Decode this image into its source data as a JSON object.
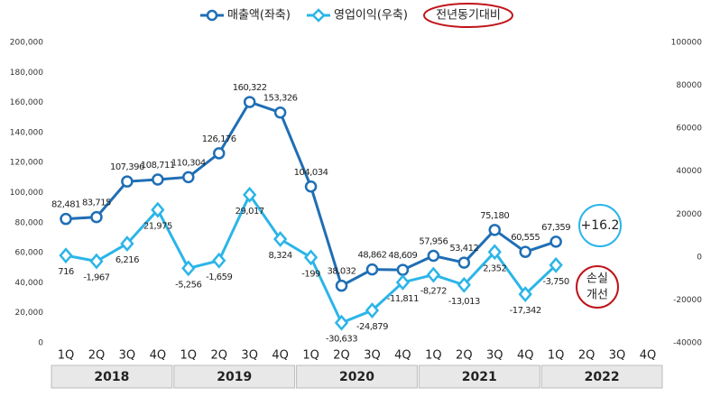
{
  "chart_data": {
    "type": "line",
    "categories": [
      "1Q",
      "2Q",
      "3Q",
      "4Q",
      "1Q",
      "2Q",
      "3Q",
      "4Q",
      "1Q",
      "2Q",
      "3Q",
      "4Q",
      "1Q",
      "2Q",
      "3Q",
      "4Q",
      "1Q",
      "2Q",
      "3Q",
      "4Q"
    ],
    "years": [
      "2018",
      "2019",
      "2020",
      "2021",
      "2022"
    ],
    "series": [
      {
        "name": "매출액(좌축)",
        "color": "#1f6eb5",
        "marker": "circle",
        "values": [
          82481,
          83715,
          107396,
          108711,
          110304,
          126176,
          160322,
          153326,
          104034,
          38032,
          48862,
          48609,
          57956,
          53412,
          75180,
          60555,
          67359,
          null,
          null,
          null
        ],
        "value_labels": [
          "82,481",
          "83,715",
          "107,396",
          "108,711",
          "110,304",
          "126,176",
          "160,322",
          "153,326",
          "104,034",
          "38,032",
          "48,862",
          "48,609",
          "57,956",
          "53,412",
          "75,180",
          "60,555",
          "67,359",
          null,
          null,
          null
        ]
      },
      {
        "name": "영업이익(우축)",
        "color": "#2bb5e8",
        "marker": "diamond",
        "axis": "y2",
        "values": [
          716,
          -1967,
          6216,
          21975,
          -5256,
          -1659,
          29017,
          8324,
          -199,
          -30633,
          -24879,
          -11811,
          -8272,
          -13013,
          2352,
          -17342,
          -3750,
          null,
          null,
          null
        ],
        "value_labels": [
          "716",
          "-1,967",
          "6,216",
          "21,975",
          "-5,256",
          "-1,659",
          "29,017",
          "8,324",
          "-199",
          "-30,633",
          "-24,879",
          "-11,811",
          "-8,272",
          "-13,013",
          "2,352",
          "-17,342",
          "-3,750",
          null,
          null,
          null
        ]
      }
    ],
    "ylim": [
      0,
      200000
    ],
    "yticks": [
      {
        "value": 0,
        "label": "0"
      },
      {
        "value": 20000,
        "label": "20,000"
      },
      {
        "value": 40000,
        "label": "40,000"
      },
      {
        "value": 60000,
        "label": "60,000"
      },
      {
        "value": 80000,
        "label": "80,000"
      },
      {
        "value": 100000,
        "label": "100,000"
      },
      {
        "value": 120000,
        "label": "120,000"
      },
      {
        "value": 140000,
        "label": "140,000"
      },
      {
        "value": 160000,
        "label": "160,000"
      },
      {
        "value": 180000,
        "label": "180,000"
      },
      {
        "value": 200000,
        "label": "200,000"
      }
    ],
    "y2lim": [
      -40000,
      100000
    ],
    "y2ticks": [
      -40000,
      -20000,
      0,
      20000,
      40000,
      60000,
      80000,
      100000
    ],
    "annotations": {
      "yoy_legend": "전년동기대비",
      "yoy_growth": "+16.2",
      "loss_line1": "손실",
      "loss_line2": "개선"
    }
  }
}
